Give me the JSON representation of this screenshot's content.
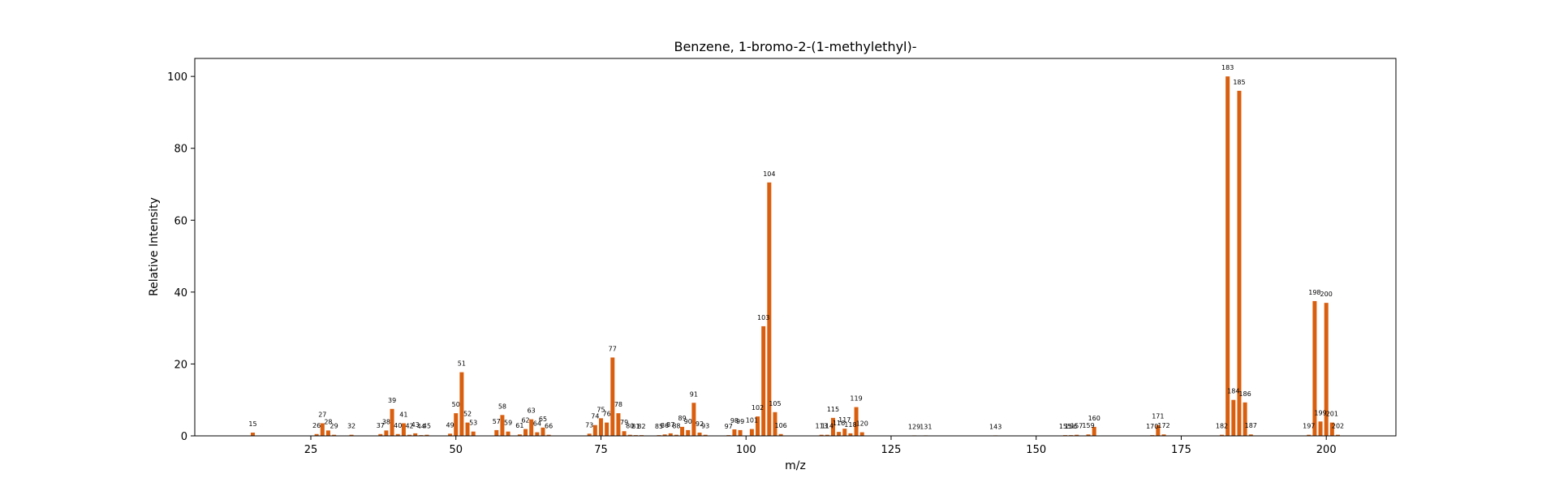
{
  "chart_data": {
    "type": "bar",
    "title": "Benzene, 1-bromo-2-(1-methylethyl)-",
    "xlabel": "m/z",
    "ylabel": "Relative Intensity",
    "xlim": [
      5,
      212
    ],
    "ylim": [
      0,
      105
    ],
    "xticks": [
      25,
      50,
      75,
      100,
      125,
      150,
      175,
      200
    ],
    "yticks": [
      0,
      20,
      40,
      60,
      80,
      100
    ],
    "bar_color": "#d95f0e",
    "grid": false,
    "peaks": [
      {
        "mz": 15,
        "intensity": 0.9
      },
      {
        "mz": 26,
        "intensity": 0.5
      },
      {
        "mz": 27,
        "intensity": 3.5
      },
      {
        "mz": 28,
        "intensity": 1.5
      },
      {
        "mz": 29,
        "intensity": 0.3
      },
      {
        "mz": 32,
        "intensity": 0.3
      },
      {
        "mz": 37,
        "intensity": 0.5
      },
      {
        "mz": 38,
        "intensity": 1.5
      },
      {
        "mz": 39,
        "intensity": 7.5
      },
      {
        "mz": 40,
        "intensity": 0.5
      },
      {
        "mz": 41,
        "intensity": 3.5
      },
      {
        "mz": 42,
        "intensity": 0.3
      },
      {
        "mz": 43,
        "intensity": 0.7
      },
      {
        "mz": 44,
        "intensity": 0.2
      },
      {
        "mz": 45,
        "intensity": 0.3
      },
      {
        "mz": 49,
        "intensity": 0.6
      },
      {
        "mz": 50,
        "intensity": 6.3
      },
      {
        "mz": 51,
        "intensity": 17.7
      },
      {
        "mz": 52,
        "intensity": 3.7
      },
      {
        "mz": 53,
        "intensity": 1.2
      },
      {
        "mz": 57,
        "intensity": 1.6
      },
      {
        "mz": 58,
        "intensity": 5.8
      },
      {
        "mz": 59,
        "intensity": 1.2
      },
      {
        "mz": 61,
        "intensity": 0.4
      },
      {
        "mz": 62,
        "intensity": 1.9
      },
      {
        "mz": 63,
        "intensity": 4.6
      },
      {
        "mz": 64,
        "intensity": 1.0
      },
      {
        "mz": 65,
        "intensity": 2.3
      },
      {
        "mz": 66,
        "intensity": 0.3
      },
      {
        "mz": 73,
        "intensity": 0.6
      },
      {
        "mz": 74,
        "intensity": 3.0
      },
      {
        "mz": 75,
        "intensity": 4.9
      },
      {
        "mz": 76,
        "intensity": 3.7
      },
      {
        "mz": 77,
        "intensity": 21.8
      },
      {
        "mz": 78,
        "intensity": 6.3
      },
      {
        "mz": 79,
        "intensity": 1.3
      },
      {
        "mz": 80,
        "intensity": 0.3
      },
      {
        "mz": 81,
        "intensity": 0.2
      },
      {
        "mz": 82,
        "intensity": 0.2
      },
      {
        "mz": 85,
        "intensity": 0.2
      },
      {
        "mz": 86,
        "intensity": 0.4
      },
      {
        "mz": 87,
        "intensity": 0.7
      },
      {
        "mz": 88,
        "intensity": 0.3
      },
      {
        "mz": 89,
        "intensity": 2.5
      },
      {
        "mz": 90,
        "intensity": 1.6
      },
      {
        "mz": 91,
        "intensity": 9.2
      },
      {
        "mz": 92,
        "intensity": 0.9
      },
      {
        "mz": 93,
        "intensity": 0.3
      },
      {
        "mz": 97,
        "intensity": 0.2
      },
      {
        "mz": 98,
        "intensity": 1.8
      },
      {
        "mz": 99,
        "intensity": 1.6
      },
      {
        "mz": 101,
        "intensity": 1.9
      },
      {
        "mz": 102,
        "intensity": 5.4
      },
      {
        "mz": 103,
        "intensity": 30.5
      },
      {
        "mz": 104,
        "intensity": 70.5
      },
      {
        "mz": 105,
        "intensity": 6.6
      },
      {
        "mz": 106,
        "intensity": 0.5
      },
      {
        "mz": 113,
        "intensity": 0.3
      },
      {
        "mz": 114,
        "intensity": 0.3
      },
      {
        "mz": 115,
        "intensity": 5.0
      },
      {
        "mz": 116,
        "intensity": 1.1
      },
      {
        "mz": 117,
        "intensity": 2.0
      },
      {
        "mz": 118,
        "intensity": 0.7
      },
      {
        "mz": 119,
        "intensity": 8.0
      },
      {
        "mz": 120,
        "intensity": 1.0
      },
      {
        "mz": 129,
        "intensity": 0.1
      },
      {
        "mz": 131,
        "intensity": 0.1
      },
      {
        "mz": 143,
        "intensity": 0.1
      },
      {
        "mz": 155,
        "intensity": 0.2
      },
      {
        "mz": 156,
        "intensity": 0.2
      },
      {
        "mz": 157,
        "intensity": 0.3
      },
      {
        "mz": 159,
        "intensity": 0.4
      },
      {
        "mz": 160,
        "intensity": 2.5
      },
      {
        "mz": 170,
        "intensity": 0.2
      },
      {
        "mz": 171,
        "intensity": 3.0
      },
      {
        "mz": 172,
        "intensity": 0.4
      },
      {
        "mz": 182,
        "intensity": 0.3
      },
      {
        "mz": 183,
        "intensity": 100.0
      },
      {
        "mz": 184,
        "intensity": 10.0
      },
      {
        "mz": 185,
        "intensity": 96.0
      },
      {
        "mz": 186,
        "intensity": 9.3
      },
      {
        "mz": 187,
        "intensity": 0.4
      },
      {
        "mz": 197,
        "intensity": 0.3
      },
      {
        "mz": 198,
        "intensity": 37.5
      },
      {
        "mz": 199,
        "intensity": 4.0
      },
      {
        "mz": 200,
        "intensity": 37.0
      },
      {
        "mz": 201,
        "intensity": 3.7
      },
      {
        "mz": 202,
        "intensity": 0.3
      }
    ]
  }
}
